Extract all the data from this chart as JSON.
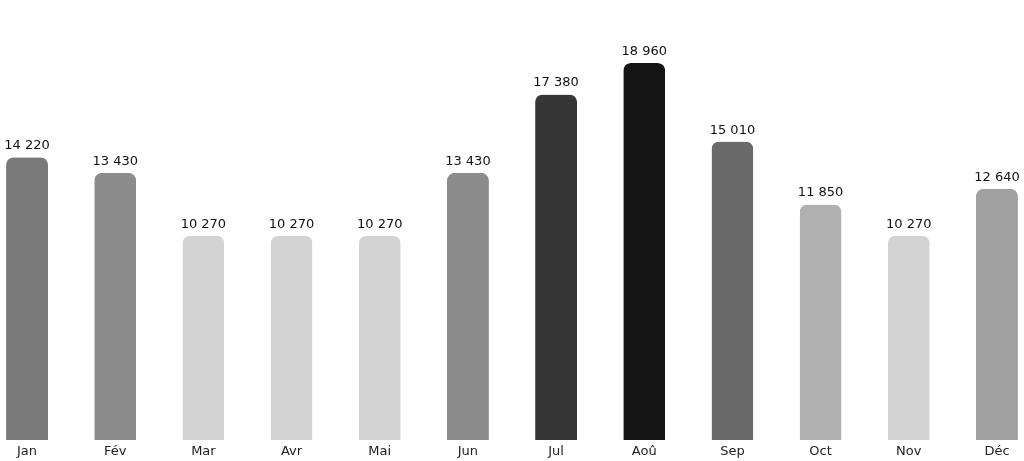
{
  "chart_data": {
    "type": "bar",
    "categories": [
      "Jan",
      "Fév",
      "Mar",
      "Avr",
      "Mai",
      "Jun",
      "Jul",
      "Aoû",
      "Sep",
      "Oct",
      "Nov",
      "Déc"
    ],
    "values": [
      14220,
      13430,
      10270,
      10270,
      10270,
      13430,
      17380,
      18960,
      15010,
      11850,
      10270,
      12640
    ],
    "colors": [
      "#7a7a7a",
      "#8c8c8c",
      "#d3d3d3",
      "#d3d3d3",
      "#d3d3d3",
      "#8c8c8c",
      "#363636",
      "#141414",
      "#6a6a6a",
      "#b0b0b0",
      "#d3d3d3",
      "#a0a0a0"
    ],
    "value_labels": [
      "14 220",
      "13 430",
      "10 270",
      "10 270",
      "10 270",
      "13 430",
      "17 380",
      "18 960",
      "15 010",
      "11 850",
      "10 270",
      "12 640"
    ]
  }
}
